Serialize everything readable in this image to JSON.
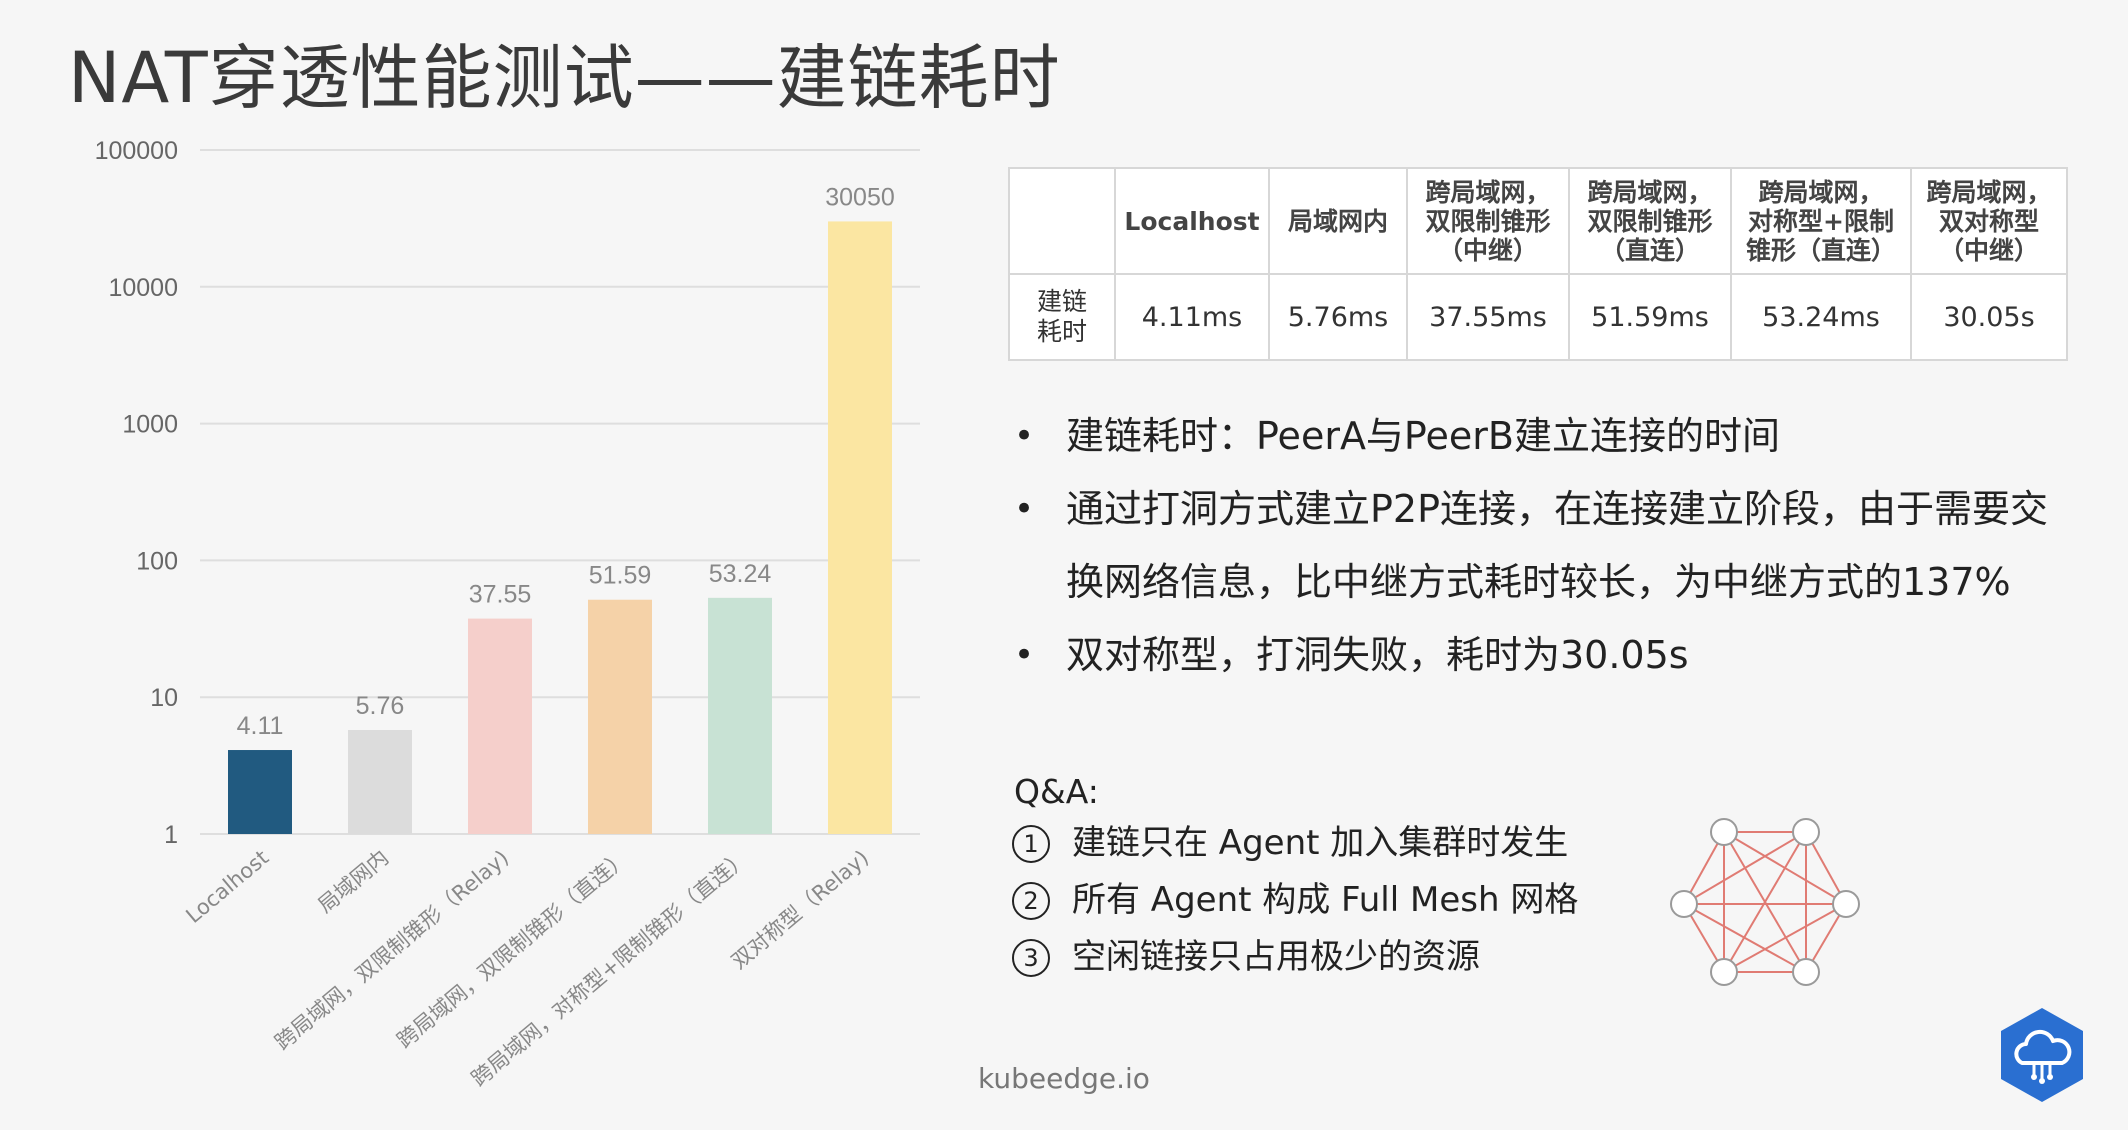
{
  "slide": {
    "title": "NAT穿透性能测试——建链耗时",
    "footer": "kubeedge.io"
  },
  "chart_data": {
    "type": "bar",
    "yscale": "log",
    "ylim": [
      1,
      100000
    ],
    "yticks": [
      "1",
      "10",
      "100",
      "1000",
      "10000",
      "100000"
    ],
    "categories": [
      "Localhost",
      "局域网内",
      "跨局域网，双限制锥形（Relay)",
      "跨局域网，双限制锥形（直连）",
      "跨局域网，对称型+限制锥形（直连）",
      "双对称型（Relay)"
    ],
    "values": [
      4.11,
      5.76,
      37.55,
      51.59,
      53.24,
      30050
    ],
    "labels": [
      "4.11",
      "5.76",
      "37.55",
      "51.59",
      "53.24",
      "30050"
    ],
    "colors": [
      "#215a80",
      "#dcdcdc",
      "#f5cfcb",
      "#f5d2a8",
      "#c8e2d4",
      "#fbe6a2"
    ],
    "grid": true
  },
  "table": {
    "headers": [
      "",
      "Localhost",
      "局域网内",
      "跨局域网，\n双限制锥形\n（中继）",
      "跨局域网，\n双限制锥形\n（直连）",
      "跨局域网，\n对称型+限制\n锥形（直连）",
      "跨局域网，\n双对称型\n（中继）"
    ],
    "row_label": "建链\n耗时",
    "cells": [
      "4.11ms",
      "5.76ms",
      "37.55ms",
      "51.59ms",
      "53.24ms",
      "30.05s"
    ]
  },
  "bullets": [
    "建链耗时：PeerA与PeerB建立连接的时间",
    "通过打洞方式建立P2P连接，在连接建立阶段，由于需要交换网络信息，比中继方式耗时较长，为中继方式的137%",
    "双对称型，打洞失败，耗时为30.05s"
  ],
  "bullet_marker": "•",
  "qa": {
    "title": "Q&A:",
    "items": [
      {
        "num": "1",
        "text": "建链只在 Agent 加入集群时发生"
      },
      {
        "num": "2",
        "text": "所有 Agent 构成 Full Mesh 网格"
      },
      {
        "num": "3",
        "text": "空闲链接只占用极少的资源"
      }
    ]
  },
  "icons": {
    "mesh": "full-mesh-network-icon",
    "logo": "kubeedge-cloud-logo-icon"
  },
  "colors": {
    "mesh_line": "#e07b73",
    "mesh_node": "#9a9a9a",
    "logo_fill": "#2a6fd1"
  }
}
